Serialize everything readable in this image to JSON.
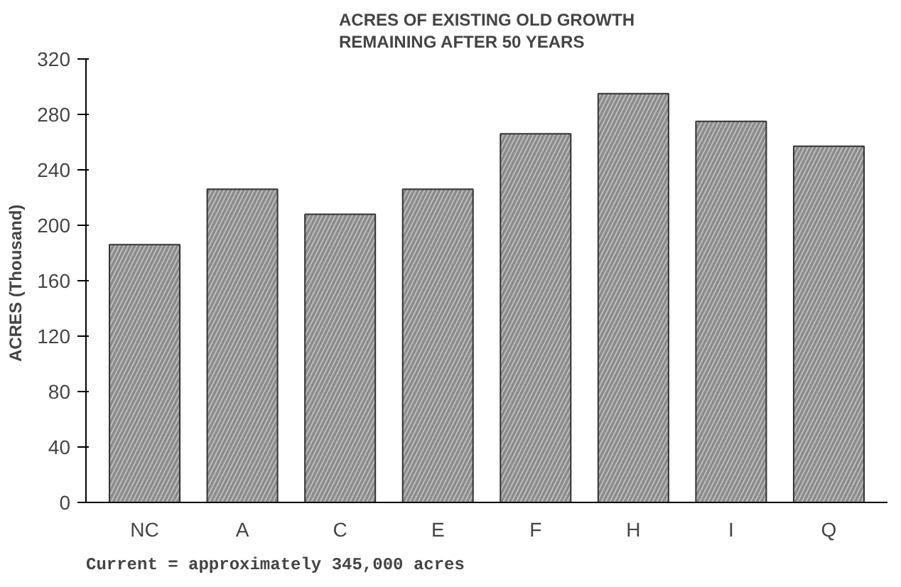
{
  "chart_data": {
    "type": "bar",
    "title": "ACRES OF EXISTING OLD GROWTH\nREMAINING AFTER 50 YEARS",
    "ylabel": "ACRES  (Thousand)",
    "categories": [
      "NC",
      "A",
      "C",
      "E",
      "F",
      "H",
      "I",
      "Q"
    ],
    "values": [
      186,
      226,
      208,
      226,
      266,
      295,
      275,
      257
    ],
    "color": "#8a8a8a",
    "ylim": [
      0,
      320
    ],
    "yticks": [
      0,
      40,
      80,
      120,
      160,
      200,
      240,
      280,
      320
    ],
    "grid": false,
    "annotations": [
      "Current = approximately 345,000 acres"
    ]
  }
}
